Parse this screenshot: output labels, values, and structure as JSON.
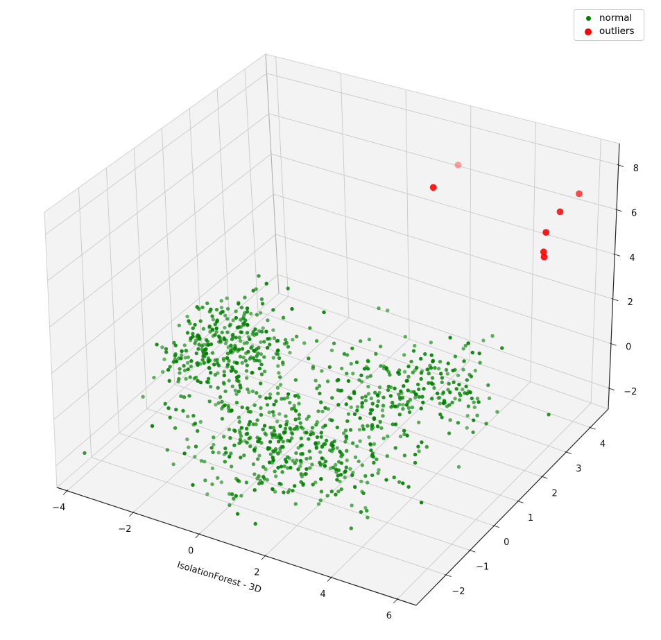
{
  "figure": {
    "background": "#ffffff"
  },
  "legend": {
    "position": "upper right",
    "entries": [
      {
        "label": "normal",
        "color": "#008000",
        "marker": "dot-small"
      },
      {
        "label": "outliers",
        "color": "#ff0000",
        "marker": "dot-large"
      }
    ]
  },
  "chart_data": {
    "type": "scatter",
    "projection": "3d",
    "title": "",
    "xlabel": "IsolationForest - 3D",
    "ylabel": "",
    "zlabel": "",
    "grid": true,
    "legend_position": "upper right",
    "axes": {
      "x": {
        "ticks": [
          -4,
          -2,
          0,
          2,
          4,
          6
        ],
        "range": [
          -4.31,
          6.57
        ]
      },
      "y": {
        "ticks": [
          -2,
          -1,
          0,
          1,
          2,
          3,
          4
        ],
        "range": [
          -3.24,
          4.75
        ]
      },
      "z": {
        "ticks": [
          -2,
          0,
          2,
          4,
          6,
          8
        ],
        "range": [
          -2.93,
          8.96
        ]
      }
    },
    "series": [
      {
        "name": "normal",
        "color": "#008000",
        "marker_radius": 2.7,
        "opacity_range": [
          0.55,
          0.95
        ],
        "distribution": "gaussian_mixture",
        "seed": 7,
        "clusters": [
          {
            "n": 330,
            "center": [
              -3.2,
              1.5,
              -1.0
            ],
            "std": [
              1.1,
              0.75,
              0.6
            ]
          },
          {
            "n": 440,
            "center": [
              1.0,
              -0.9,
              -1.0
            ],
            "std": [
              1.5,
              0.9,
              0.5
            ]
          },
          {
            "n": 240,
            "center": [
              2.3,
              2.0,
              -1.0
            ],
            "std": [
              1.1,
              0.8,
              0.5
            ]
          }
        ]
      },
      {
        "name": "outliers",
        "color": "#ff0000",
        "marker_radius": 4.9,
        "points": [
          {
            "x": 2.7,
            "y": 3.36,
            "z": 7.97,
            "alpha": 0.35
          },
          {
            "x": 2.45,
            "y": 2.71,
            "z": 7.52,
            "alpha": 0.9
          },
          {
            "x": 6.3,
            "y": 3.48,
            "z": 8.0,
            "alpha": 0.7
          },
          {
            "x": 5.9,
            "y": 3.26,
            "z": 7.27,
            "alpha": 0.85
          },
          {
            "x": 5.85,
            "y": 2.76,
            "z": 6.87,
            "alpha": 0.9
          },
          {
            "x": 5.8,
            "y": 2.76,
            "z": 5.97,
            "alpha": 0.9
          },
          {
            "x": 5.82,
            "y": 2.76,
            "z": 5.75,
            "alpha": 0.9
          }
        ]
      }
    ],
    "style": {
      "pane_color": "#f3f3f3",
      "grid_color": "#c9c9c9",
      "pane_edge_color": "#d2d2d2",
      "back_edge_color": "#b3b3b3",
      "spine_color": "#262626",
      "tick_label_color": "#111111",
      "tick_label_size": 13
    }
  }
}
